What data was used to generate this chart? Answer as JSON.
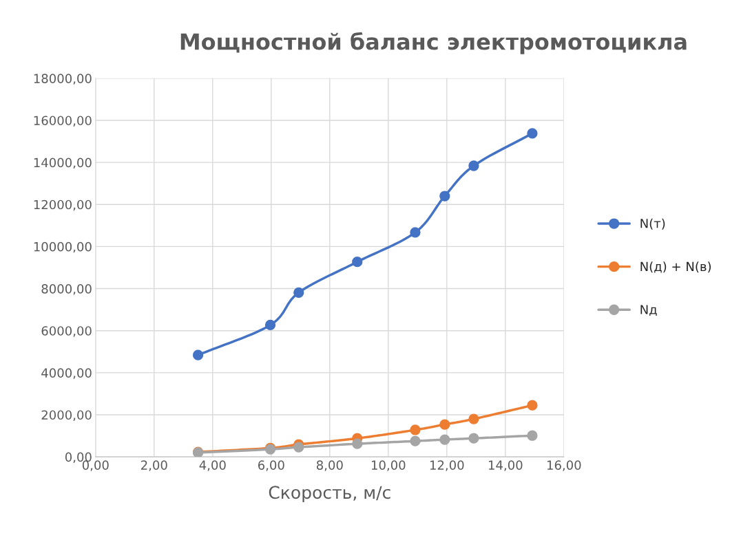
{
  "chart_data": {
    "type": "line",
    "title": "Мощностной баланс электромотоцикла",
    "xlabel": "Скорость, м/с",
    "x": [
      3.5,
      5.97,
      6.94,
      8.94,
      10.92,
      11.93,
      12.92,
      14.92
    ],
    "series": [
      {
        "name": "N(т)",
        "color": "#4472c4",
        "values": [
          4840,
          6270,
          7810,
          9270,
          10670,
          12400,
          13840,
          15380
        ]
      },
      {
        "name": "N(д) + N(в)",
        "color": "#ed7d31",
        "values": [
          230,
          420,
          590,
          880,
          1280,
          1540,
          1800,
          2450
        ]
      },
      {
        "name": "Nд",
        "color": "#a5a5a5",
        "values": [
          200,
          360,
          460,
          620,
          750,
          820,
          880,
          1010
        ]
      }
    ],
    "xlim": [
      0,
      16
    ],
    "ylim": [
      0,
      18000
    ],
    "xticks": [
      {
        "value": 0,
        "label": "0,00"
      },
      {
        "value": 2,
        "label": "2,00"
      },
      {
        "value": 4,
        "label": "4,00"
      },
      {
        "value": 6,
        "label": "6,00"
      },
      {
        "value": 8,
        "label": "8,00"
      },
      {
        "value": 10,
        "label": "10,00"
      },
      {
        "value": 12,
        "label": "12,00"
      },
      {
        "value": 14,
        "label": "14,00"
      },
      {
        "value": 16,
        "label": "16,00"
      }
    ],
    "yticks": [
      {
        "value": 0,
        "label": "0,00"
      },
      {
        "value": 2000,
        "label": "2000,00"
      },
      {
        "value": 4000,
        "label": "4000,00"
      },
      {
        "value": 6000,
        "label": "6000,00"
      },
      {
        "value": 8000,
        "label": "8000,00"
      },
      {
        "value": 10000,
        "label": "10000,00"
      },
      {
        "value": 12000,
        "label": "12000,00"
      },
      {
        "value": 14000,
        "label": "14000,00"
      },
      {
        "value": 16000,
        "label": "16000,00"
      },
      {
        "value": 18000,
        "label": "18000,00"
      }
    ],
    "grid": true,
    "legend": "right",
    "marker": "circle",
    "line_style": "solid"
  }
}
